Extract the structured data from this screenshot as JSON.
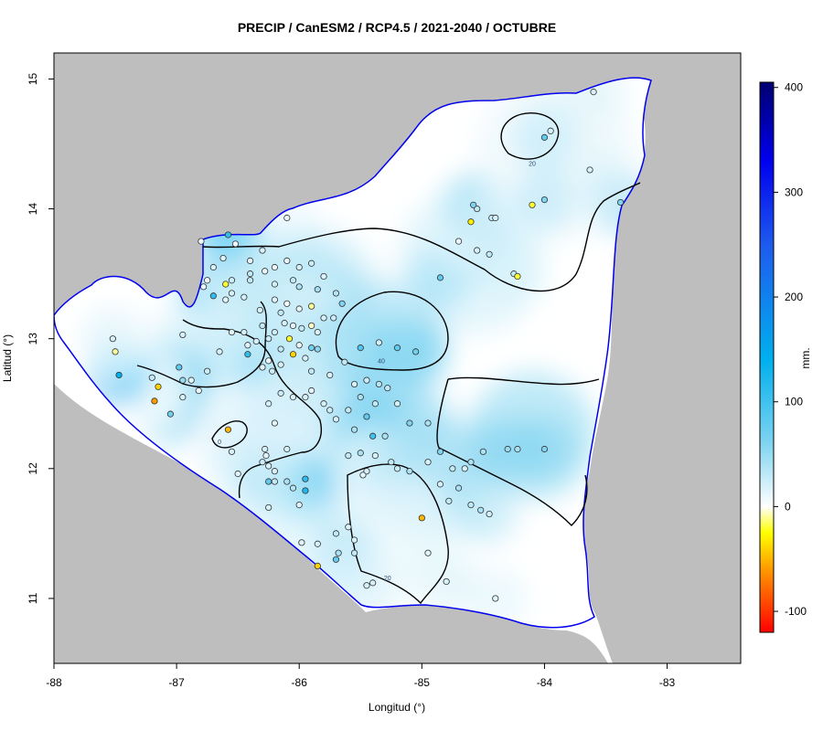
{
  "title": "PRECIP / CanESM2 / RCP4.5 / 2021-2040 / OCTUBRE",
  "xlabel": "Longitud (°)",
  "ylabel": "Latitud (°)",
  "legend_unit": "mm.",
  "colors": {
    "land_outside": "#bebebe",
    "coast": "#0000ee",
    "border": "#000000",
    "station_stroke": "#333333"
  },
  "chart_data": {
    "type": "heatmap",
    "xlim": [
      -88,
      -82.4
    ],
    "ylim": [
      10.5,
      15.2
    ],
    "x_ticks": [
      -88,
      -87,
      -86,
      -85,
      -84,
      -83
    ],
    "y_ticks": [
      11,
      12,
      13,
      14,
      15
    ],
    "x_tick_labels": [
      "-88",
      "-87",
      "-86",
      "-85",
      "-84",
      "-83"
    ],
    "y_tick_labels": [
      "11",
      "12",
      "13",
      "14",
      "15"
    ],
    "colorbar": {
      "min": -120,
      "max": 405,
      "ticks": [
        400,
        300,
        200,
        100,
        0,
        -100
      ],
      "tick_labels": [
        "400",
        "300",
        "200",
        "100",
        "0",
        "-100"
      ],
      "stops": [
        {
          "value": -120,
          "color": "#ff0000"
        },
        {
          "value": -60,
          "color": "#ff9900"
        },
        {
          "value": -25,
          "color": "#ffff00"
        },
        {
          "value": 0,
          "color": "#ffffff"
        },
        {
          "value": 60,
          "color": "#80d4f0"
        },
        {
          "value": 140,
          "color": "#00b0ee"
        },
        {
          "value": 250,
          "color": "#1e5aee"
        },
        {
          "value": 330,
          "color": "#0000ee"
        },
        {
          "value": 405,
          "color": "#000070"
        }
      ]
    },
    "contour_labels": [
      {
        "text": "20",
        "lon": -84.1,
        "lat": 14.33
      },
      {
        "text": "40",
        "lon": -85.33,
        "lat": 12.81
      },
      {
        "text": "0",
        "lon": -86.65,
        "lat": 12.19
      },
      {
        "text": "20",
        "lon": -85.28,
        "lat": 11.14
      }
    ],
    "stations": [
      {
        "lon": -86.8,
        "lat": 13.75,
        "v": 10
      },
      {
        "lon": -86.52,
        "lat": 13.73,
        "v": 5
      },
      {
        "lon": -86.62,
        "lat": 13.62,
        "v": 15
      },
      {
        "lon": -86.7,
        "lat": 13.55,
        "v": 20
      },
      {
        "lon": -86.4,
        "lat": 13.6,
        "v": 12
      },
      {
        "lon": -86.3,
        "lat": 13.68,
        "v": 18
      },
      {
        "lon": -86.55,
        "lat": 13.45,
        "v": 25
      },
      {
        "lon": -86.6,
        "lat": 13.42,
        "v": -20
      },
      {
        "lon": -86.75,
        "lat": 13.45,
        "v": 8
      },
      {
        "lon": -86.78,
        "lat": 13.4,
        "v": 10
      },
      {
        "lon": -86.7,
        "lat": 13.33,
        "v": 110
      },
      {
        "lon": -86.6,
        "lat": 13.3,
        "v": 15
      },
      {
        "lon": -86.55,
        "lat": 13.35,
        "v": 20
      },
      {
        "lon": -86.45,
        "lat": 13.32,
        "v": 22
      },
      {
        "lon": -86.4,
        "lat": 13.5,
        "v": 30
      },
      {
        "lon": -86.28,
        "lat": 13.52,
        "v": 10
      },
      {
        "lon": -86.2,
        "lat": 13.55,
        "v": 8
      },
      {
        "lon": -86.1,
        "lat": 13.6,
        "v": 12
      },
      {
        "lon": -86.0,
        "lat": 13.55,
        "v": 20
      },
      {
        "lon": -85.9,
        "lat": 13.58,
        "v": 25
      },
      {
        "lon": -85.8,
        "lat": 13.48,
        "v": 18
      },
      {
        "lon": -86.2,
        "lat": 13.42,
        "v": 22
      },
      {
        "lon": -86.05,
        "lat": 13.45,
        "v": 30
      },
      {
        "lon": -86.0,
        "lat": 13.4,
        "v": 40
      },
      {
        "lon": -85.85,
        "lat": 13.38,
        "v": 45
      },
      {
        "lon": -85.7,
        "lat": 13.35,
        "v": 35
      },
      {
        "lon": -85.65,
        "lat": 13.27,
        "v": 60
      },
      {
        "lon": -86.1,
        "lat": 13.27,
        "v": 5
      },
      {
        "lon": -86.0,
        "lat": 13.23,
        "v": 10
      },
      {
        "lon": -85.9,
        "lat": 13.25,
        "v": -10
      },
      {
        "lon": -85.8,
        "lat": 13.16,
        "v": 20
      },
      {
        "lon": -85.72,
        "lat": 13.16,
        "v": 25
      },
      {
        "lon": -86.15,
        "lat": 13.2,
        "v": 30
      },
      {
        "lon": -86.12,
        "lat": 13.12,
        "v": 20
      },
      {
        "lon": -86.05,
        "lat": 13.1,
        "v": 15
      },
      {
        "lon": -85.98,
        "lat": 13.08,
        "v": 30
      },
      {
        "lon": -85.9,
        "lat": 13.1,
        "v": -5
      },
      {
        "lon": -85.85,
        "lat": 13.05,
        "v": 20
      },
      {
        "lon": -86.2,
        "lat": 13.05,
        "v": 25
      },
      {
        "lon": -86.08,
        "lat": 13.0,
        "v": -20
      },
      {
        "lon": -86.0,
        "lat": 12.95,
        "v": 10
      },
      {
        "lon": -85.9,
        "lat": 12.93,
        "v": 70
      },
      {
        "lon": -85.85,
        "lat": 12.92,
        "v": 55
      },
      {
        "lon": -86.15,
        "lat": 12.92,
        "v": 30
      },
      {
        "lon": -86.05,
        "lat": 12.88,
        "v": -40
      },
      {
        "lon": -85.95,
        "lat": 12.85,
        "v": 20
      },
      {
        "lon": -86.25,
        "lat": 12.83,
        "v": 10
      },
      {
        "lon": -86.15,
        "lat": 12.8,
        "v": 20
      },
      {
        "lon": -86.3,
        "lat": 12.78,
        "v": 15
      },
      {
        "lon": -86.22,
        "lat": 12.75,
        "v": 25
      },
      {
        "lon": -86.35,
        "lat": 12.98,
        "v": 20
      },
      {
        "lon": -86.3,
        "lat": 13.1,
        "v": 30
      },
      {
        "lon": -86.45,
        "lat": 13.05,
        "v": 20
      },
      {
        "lon": -86.42,
        "lat": 12.95,
        "v": 15
      },
      {
        "lon": -86.42,
        "lat": 12.88,
        "v": 110
      },
      {
        "lon": -86.55,
        "lat": 13.05,
        "v": 15
      },
      {
        "lon": -86.65,
        "lat": 12.9,
        "v": 20
      },
      {
        "lon": -86.75,
        "lat": 12.75,
        "v": 25
      },
      {
        "lon": -86.88,
        "lat": 12.68,
        "v": 15
      },
      {
        "lon": -86.82,
        "lat": 12.6,
        "v": 10
      },
      {
        "lon": -86.95,
        "lat": 12.55,
        "v": 20
      },
      {
        "lon": -86.95,
        "lat": 12.68,
        "v": 50
      },
      {
        "lon": -86.98,
        "lat": 12.78,
        "v": 80
      },
      {
        "lon": -87.05,
        "lat": 12.42,
        "v": 70
      },
      {
        "lon": -87.2,
        "lat": 12.7,
        "v": 30
      },
      {
        "lon": -87.15,
        "lat": 12.63,
        "v": -40
      },
      {
        "lon": -87.18,
        "lat": 12.52,
        "v": -60
      },
      {
        "lon": -87.47,
        "lat": 12.72,
        "v": 140
      },
      {
        "lon": -87.5,
        "lat": 12.9,
        "v": -10
      },
      {
        "lon": -87.52,
        "lat": 13.0,
        "v": 20
      },
      {
        "lon": -86.95,
        "lat": 13.03,
        "v": 20
      },
      {
        "lon": -86.58,
        "lat": 12.3,
        "v": -50
      },
      {
        "lon": -86.55,
        "lat": 12.13,
        "v": 20
      },
      {
        "lon": -86.5,
        "lat": 11.96,
        "v": 15
      },
      {
        "lon": -86.28,
        "lat": 12.15,
        "v": 20
      },
      {
        "lon": -86.27,
        "lat": 12.1,
        "v": 15
      },
      {
        "lon": -86.3,
        "lat": 12.05,
        "v": 25
      },
      {
        "lon": -86.25,
        "lat": 12.02,
        "v": 20
      },
      {
        "lon": -86.2,
        "lat": 11.98,
        "v": 20
      },
      {
        "lon": -86.25,
        "lat": 11.9,
        "v": 80
      },
      {
        "lon": -86.2,
        "lat": 11.9,
        "v": 30
      },
      {
        "lon": -86.1,
        "lat": 11.9,
        "v": 40
      },
      {
        "lon": -86.05,
        "lat": 11.85,
        "v": 35
      },
      {
        "lon": -85.95,
        "lat": 11.92,
        "v": 110
      },
      {
        "lon": -85.95,
        "lat": 11.83,
        "v": 120
      },
      {
        "lon": -86.0,
        "lat": 11.72,
        "v": 15
      },
      {
        "lon": -86.25,
        "lat": 11.7,
        "v": 20
      },
      {
        "lon": -86.1,
        "lat": 12.15,
        "v": 20
      },
      {
        "lon": -86.2,
        "lat": 12.35,
        "v": 15
      },
      {
        "lon": -86.25,
        "lat": 12.5,
        "v": 20
      },
      {
        "lon": -86.15,
        "lat": 12.58,
        "v": 25
      },
      {
        "lon": -86.05,
        "lat": 12.55,
        "v": 20
      },
      {
        "lon": -85.95,
        "lat": 12.55,
        "v": 20
      },
      {
        "lon": -85.9,
        "lat": 12.6,
        "v": 15
      },
      {
        "lon": -85.8,
        "lat": 12.5,
        "v": 20
      },
      {
        "lon": -85.75,
        "lat": 12.45,
        "v": 25
      },
      {
        "lon": -85.7,
        "lat": 12.38,
        "v": 20
      },
      {
        "lon": -85.6,
        "lat": 12.45,
        "v": 30
      },
      {
        "lon": -85.5,
        "lat": 12.55,
        "v": 40
      },
      {
        "lon": -85.38,
        "lat": 12.5,
        "v": 30
      },
      {
        "lon": -85.55,
        "lat": 12.65,
        "v": 20
      },
      {
        "lon": -85.45,
        "lat": 12.68,
        "v": 25
      },
      {
        "lon": -85.35,
        "lat": 12.65,
        "v": 35
      },
      {
        "lon": -85.28,
        "lat": 12.62,
        "v": 30
      },
      {
        "lon": -85.2,
        "lat": 12.5,
        "v": 20
      },
      {
        "lon": -85.45,
        "lat": 12.4,
        "v": 80
      },
      {
        "lon": -85.55,
        "lat": 12.3,
        "v": 40
      },
      {
        "lon": -85.4,
        "lat": 12.25,
        "v": 100
      },
      {
        "lon": -85.3,
        "lat": 12.25,
        "v": 40
      },
      {
        "lon": -85.1,
        "lat": 12.35,
        "v": 60
      },
      {
        "lon": -84.95,
        "lat": 12.35,
        "v": 40
      },
      {
        "lon": -85.6,
        "lat": 12.1,
        "v": 30
      },
      {
        "lon": -85.5,
        "lat": 12.12,
        "v": 40
      },
      {
        "lon": -85.38,
        "lat": 12.1,
        "v": 20
      },
      {
        "lon": -85.25,
        "lat": 12.05,
        "v": 30
      },
      {
        "lon": -85.2,
        "lat": 12.0,
        "v": 25
      },
      {
        "lon": -85.1,
        "lat": 11.98,
        "v": 40
      },
      {
        "lon": -84.95,
        "lat": 12.05,
        "v": 20
      },
      {
        "lon": -84.85,
        "lat": 12.13,
        "v": 60
      },
      {
        "lon": -84.75,
        "lat": 12.0,
        "v": 30
      },
      {
        "lon": -84.65,
        "lat": 12.0,
        "v": 20
      },
      {
        "lon": -84.6,
        "lat": 12.05,
        "v": 40
      },
      {
        "lon": -84.5,
        "lat": 12.13,
        "v": 40
      },
      {
        "lon": -84.3,
        "lat": 12.15,
        "v": 50
      },
      {
        "lon": -84.22,
        "lat": 12.15,
        "v": 40
      },
      {
        "lon": -84.0,
        "lat": 12.15,
        "v": 60
      },
      {
        "lon": -85.45,
        "lat": 11.98,
        "v": 20
      },
      {
        "lon": -85.48,
        "lat": 11.95,
        "v": 15
      },
      {
        "lon": -84.85,
        "lat": 11.88,
        "v": 20
      },
      {
        "lon": -84.7,
        "lat": 11.85,
        "v": 40
      },
      {
        "lon": -84.78,
        "lat": 11.75,
        "v": 30
      },
      {
        "lon": -84.6,
        "lat": 11.72,
        "v": 30
      },
      {
        "lon": -84.52,
        "lat": 11.68,
        "v": 40
      },
      {
        "lon": -84.45,
        "lat": 11.65,
        "v": 20
      },
      {
        "lon": -85.6,
        "lat": 11.55,
        "v": 20
      },
      {
        "lon": -85.7,
        "lat": 11.5,
        "v": 30
      },
      {
        "lon": -85.55,
        "lat": 11.45,
        "v": 20
      },
      {
        "lon": -85.0,
        "lat": 11.62,
        "v": -50
      },
      {
        "lon": -84.95,
        "lat": 11.35,
        "v": 15
      },
      {
        "lon": -85.4,
        "lat": 11.12,
        "v": 20
      },
      {
        "lon": -85.55,
        "lat": 11.35,
        "v": 30
      },
      {
        "lon": -85.68,
        "lat": 11.35,
        "v": 40
      },
      {
        "lon": -85.85,
        "lat": 11.42,
        "v": 20
      },
      {
        "lon": -85.98,
        "lat": 11.43,
        "v": 15
      },
      {
        "lon": -85.7,
        "lat": 11.3,
        "v": 80
      },
      {
        "lon": -85.85,
        "lat": 11.25,
        "v": -40
      },
      {
        "lon": -84.8,
        "lat": 11.13,
        "v": 20
      },
      {
        "lon": -84.4,
        "lat": 11.0,
        "v": 15
      },
      {
        "lon": -85.45,
        "lat": 11.1,
        "v": 20
      },
      {
        "lon": -85.05,
        "lat": 12.9,
        "v": 70
      },
      {
        "lon": -85.2,
        "lat": 12.93,
        "v": 80
      },
      {
        "lon": -85.35,
        "lat": 12.97,
        "v": 20
      },
      {
        "lon": -85.5,
        "lat": 12.93,
        "v": 90
      },
      {
        "lon": -84.85,
        "lat": 13.47,
        "v": 80
      },
      {
        "lon": -84.55,
        "lat": 13.68,
        "v": 20
      },
      {
        "lon": -84.45,
        "lat": 13.65,
        "v": 30
      },
      {
        "lon": -84.7,
        "lat": 13.75,
        "v": 10
      },
      {
        "lon": -84.6,
        "lat": 13.9,
        "v": -30
      },
      {
        "lon": -84.55,
        "lat": 14.0,
        "v": 30
      },
      {
        "lon": -84.58,
        "lat": 14.03,
        "v": 60
      },
      {
        "lon": -84.43,
        "lat": 13.93,
        "v": 25
      },
      {
        "lon": -84.4,
        "lat": 13.93,
        "v": 20
      },
      {
        "lon": -84.25,
        "lat": 13.5,
        "v": 30
      },
      {
        "lon": -84.22,
        "lat": 13.48,
        "v": -20
      },
      {
        "lon": -84.1,
        "lat": 14.03,
        "v": -20
      },
      {
        "lon": -84.0,
        "lat": 14.07,
        "v": 60
      },
      {
        "lon": -84.0,
        "lat": 14.55,
        "v": 80
      },
      {
        "lon": -83.95,
        "lat": 14.6,
        "v": 20
      },
      {
        "lon": -83.63,
        "lat": 14.3,
        "v": 20
      },
      {
        "lon": -83.38,
        "lat": 14.05,
        "v": 60
      },
      {
        "lon": -83.6,
        "lat": 14.9,
        "v": 20
      },
      {
        "lon": -86.1,
        "lat": 13.93,
        "v": 10
      },
      {
        "lon": -86.2,
        "lat": 13.3,
        "v": 15
      },
      {
        "lon": -86.32,
        "lat": 13.22,
        "v": 20
      },
      {
        "lon": -86.25,
        "lat": 13.0,
        "v": 25
      },
      {
        "lon": -85.9,
        "lat": 12.75,
        "v": 30
      },
      {
        "lon": -85.75,
        "lat": 12.72,
        "v": 20
      },
      {
        "lon": -85.63,
        "lat": 12.82,
        "v": 30
      },
      {
        "lon": -86.58,
        "lat": 13.8,
        "v": 110
      },
      {
        "lon": -86.4,
        "lat": 13.45,
        "v": 30
      }
    ]
  }
}
